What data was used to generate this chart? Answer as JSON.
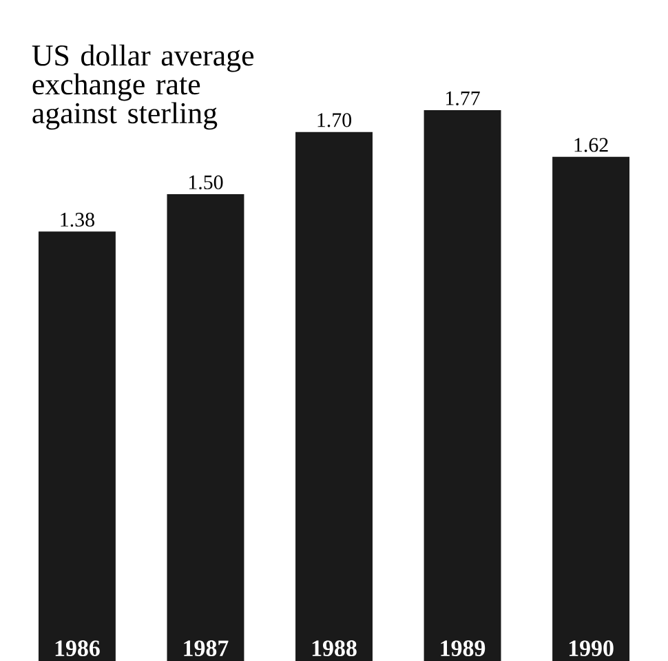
{
  "chart_data": {
    "type": "bar",
    "title": "US dollar average exchange rate against sterling",
    "categories": [
      "1986",
      "1987",
      "1988",
      "1989",
      "1990"
    ],
    "values": [
      1.38,
      1.5,
      1.7,
      1.77,
      1.62
    ],
    "value_labels": [
      "1.38",
      "1.50",
      "1.70",
      "1.77",
      "1.62"
    ],
    "color": "#1a1a1a"
  }
}
